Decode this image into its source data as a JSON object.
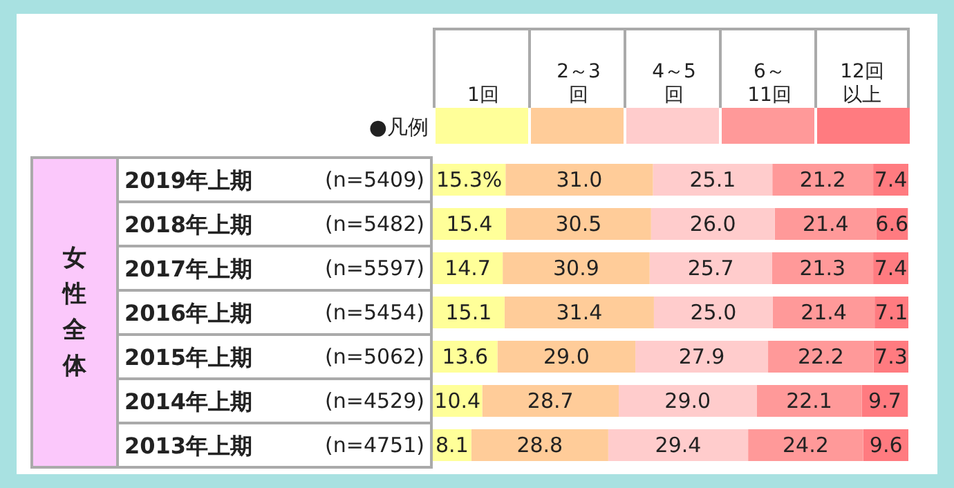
{
  "chart_data": {
    "type": "bar",
    "orientation": "horizontal",
    "stacked": true,
    "ylabel": "女性全体",
    "legend": "top",
    "legend_title": "●凡例",
    "tick_labels": false,
    "xlim": [
      0,
      100
    ],
    "categories": [
      "2019年上期",
      "2018年上期",
      "2017年上期",
      "2016年上期",
      "2015年上期",
      "2014年上期",
      "2013年上期"
    ],
    "annotations": [
      "(n=5409)",
      "(n=5482)",
      "(n=5597)",
      "(n=5454)",
      "(n=5062)",
      "(n=4529)",
      "(n=4751)"
    ],
    "series": [
      {
        "name": "1回",
        "color": "#ffff99",
        "values": [
          15.3,
          15.4,
          14.7,
          15.1,
          13.6,
          10.4,
          8.1
        ],
        "value_labels": [
          "15.3%",
          "15.4",
          "14.7",
          "15.1",
          "13.6",
          "10.4",
          "8.1"
        ]
      },
      {
        "name": "2～3回",
        "color": "#ffcc99",
        "values": [
          31.0,
          30.5,
          30.9,
          31.4,
          29.0,
          28.7,
          28.8
        ],
        "value_labels": [
          "31.0",
          "30.5",
          "30.9",
          "31.4",
          "29.0",
          "28.7",
          "28.8"
        ]
      },
      {
        "name": "4～5回",
        "color": "#ffcccc",
        "values": [
          25.1,
          26.0,
          25.7,
          25.0,
          27.9,
          29.0,
          29.4
        ],
        "value_labels": [
          "25.1",
          "26.0",
          "25.7",
          "25.0",
          "27.9",
          "29.0",
          "29.4"
        ]
      },
      {
        "name": "6～11回",
        "color": "#ff9999",
        "values": [
          21.2,
          21.4,
          21.3,
          21.4,
          22.2,
          22.1,
          24.2
        ],
        "value_labels": [
          "21.2",
          "21.4",
          "21.3",
          "21.4",
          "22.2",
          "22.1",
          "24.2"
        ]
      },
      {
        "name": "12回以上",
        "color": "#ff7b80",
        "values": [
          7.4,
          6.6,
          7.4,
          7.1,
          7.3,
          9.7,
          9.6
        ],
        "value_labels": [
          "7.4",
          "6.6",
          "7.4",
          "7.1",
          "7.3",
          "9.7",
          "9.6"
        ]
      }
    ]
  }
}
